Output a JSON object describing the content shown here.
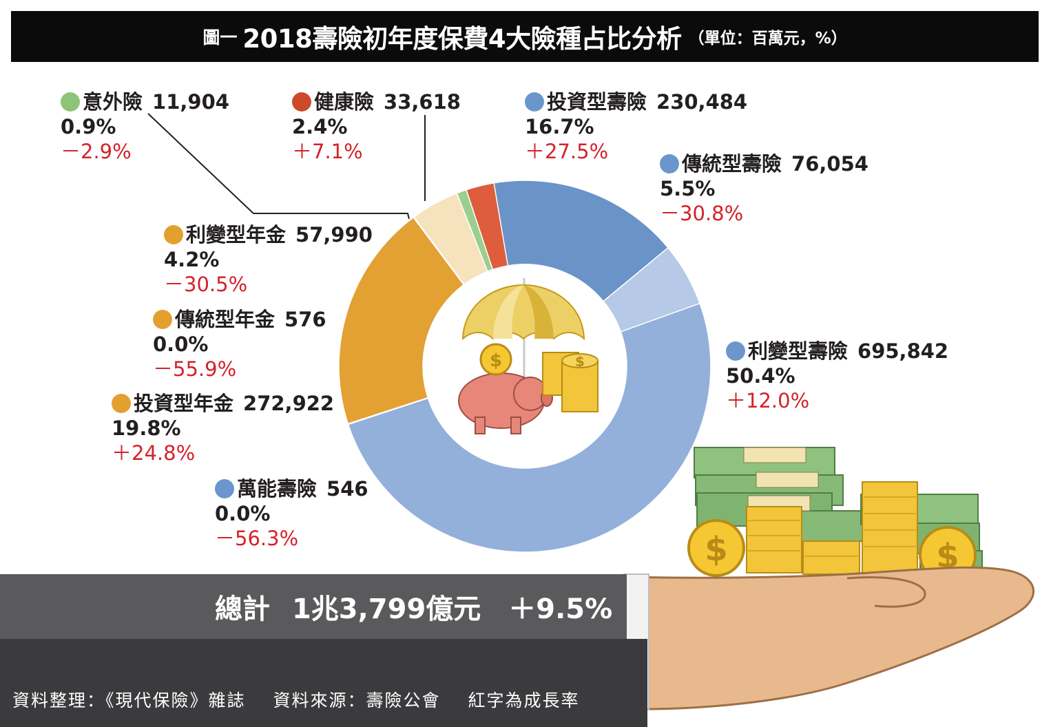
{
  "title": {
    "prefix": "圖一",
    "main": "2018壽險初年度保費4大險種占比分析",
    "unit": "（單位：百萬元，%）"
  },
  "chart_data": {
    "type": "pie",
    "title": "2018壽險初年度保費4大險種占比分析",
    "unit": "（單位：百萬元，%）",
    "slices": [
      {
        "name": "投資型壽險",
        "value": 230484,
        "value_label": "230,484",
        "share": 16.7,
        "share_label": "16.7%",
        "growth_label": "＋27.5%",
        "color": "#6a93c8"
      },
      {
        "name": "傳統型壽險",
        "value": 76054,
        "value_label": "76,054",
        "share": 5.5,
        "share_label": "5.5%",
        "growth_label": "－30.8%",
        "color": "#b6c9e6"
      },
      {
        "name": "利變型壽險",
        "value": 695842,
        "value_label": "695,842",
        "share": 50.4,
        "share_label": "50.4%",
        "growth_label": "＋12.0%",
        "color": "#93b0db"
      },
      {
        "name": "萬能壽險",
        "value": 546,
        "value_label": "546",
        "share": 0.0,
        "share_label": "0.0%",
        "growth_label": "－56.3%",
        "color": "#6a93c8"
      },
      {
        "name": "投資型年金",
        "value": 272922,
        "value_label": "272,922",
        "share": 19.8,
        "share_label": "19.8%",
        "growth_label": "＋24.8%",
        "color": "#e3a033"
      },
      {
        "name": "傳統型年金",
        "value": 576,
        "value_label": "576",
        "share": 0.0,
        "share_label": "0.0%",
        "growth_label": "－55.9%",
        "color": "#e8b45a"
      },
      {
        "name": "利變型年金",
        "value": 57990,
        "value_label": "57,990",
        "share": 4.2,
        "share_label": "4.2%",
        "growth_label": "－30.5%",
        "color": "#f6e2bd"
      },
      {
        "name": "意外險",
        "value": 11904,
        "value_label": "11,904",
        "share": 0.9,
        "share_label": "0.9%",
        "growth_label": "－2.9%",
        "color": "#9ccf8e"
      },
      {
        "name": "健康險",
        "value": 33618,
        "value_label": "33,618",
        "share": 2.4,
        "share_label": "2.4%",
        "growth_label": "＋7.1%",
        "color": "#dd5d3d"
      }
    ],
    "legend_dot_colors": {
      "life": "#6b96cd",
      "annuity": "#e3a02f",
      "accident": "#8dc47a",
      "health": "#cc4a2a"
    }
  },
  "total": {
    "label": "總計",
    "amount": "1兆3,799億元",
    "growth": "＋9.5%"
  },
  "footer": {
    "compiled": "資料整理：《現代保險》雜誌",
    "source": "資料來源：壽險公會",
    "note": "紅字為成長率"
  },
  "colors": {
    "growth_text": "#d3222a",
    "title_bg": "#0b0b0b",
    "sleeve_upper": "#5a595c",
    "sleeve_lower": "#3b3a3d"
  }
}
